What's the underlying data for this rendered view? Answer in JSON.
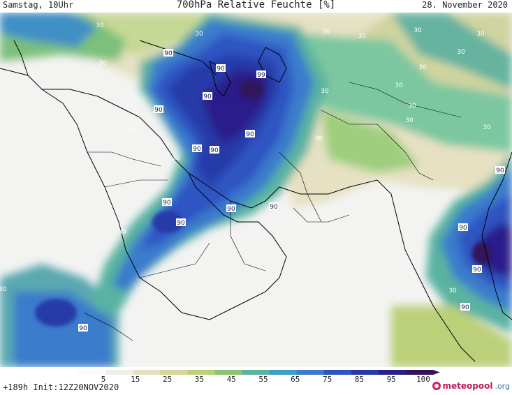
{
  "header": {
    "left": "Samstag, 10Uhr",
    "center": "700hPa Relative Feuchte [%]",
    "right": "28. November 2020"
  },
  "footer": {
    "run_info": "+189h  Init:12Z20NOV2020",
    "brand_name": "meteopool",
    "brand_tld": ".org",
    "brand_icon": "meteopool-logo-icon"
  },
  "legend": {
    "ticks": [
      "5",
      "15",
      "25",
      "35",
      "45",
      "55",
      "65",
      "75",
      "85",
      "95",
      "100"
    ],
    "colors": [
      "#fbfbfb",
      "#f0efe6",
      "#e6e0c0",
      "#d8d69a",
      "#bcd07a",
      "#8cc476",
      "#5ab3a0",
      "#3f9fc2",
      "#3b7ccc",
      "#2f54c2",
      "#273aa8",
      "#2a1f8a",
      "#33145c"
    ]
  },
  "contour_labels": [
    "30",
    "30",
    "30",
    "30",
    "30",
    "30",
    "30",
    "30",
    "30",
    "30",
    "30",
    "30",
    "30",
    "30",
    "30",
    "30",
    "30",
    "30",
    "30",
    "30",
    "90",
    "90",
    "90",
    "90",
    "90",
    "90",
    "90",
    "90",
    "90",
    "90",
    "90",
    "90",
    "90",
    "90",
    "90",
    "90",
    "99"
  ],
  "colors": {
    "very_dry": "#f4f4f4",
    "dry": "#e9e5cc",
    "mid": "#d4d29a",
    "green": "#a8cf7e",
    "teal": "#5eb4a8",
    "blue": "#3b7ccc",
    "deep_blue": "#2a3aa6",
    "purple": "#2b1f7e",
    "coast": "#000000"
  }
}
